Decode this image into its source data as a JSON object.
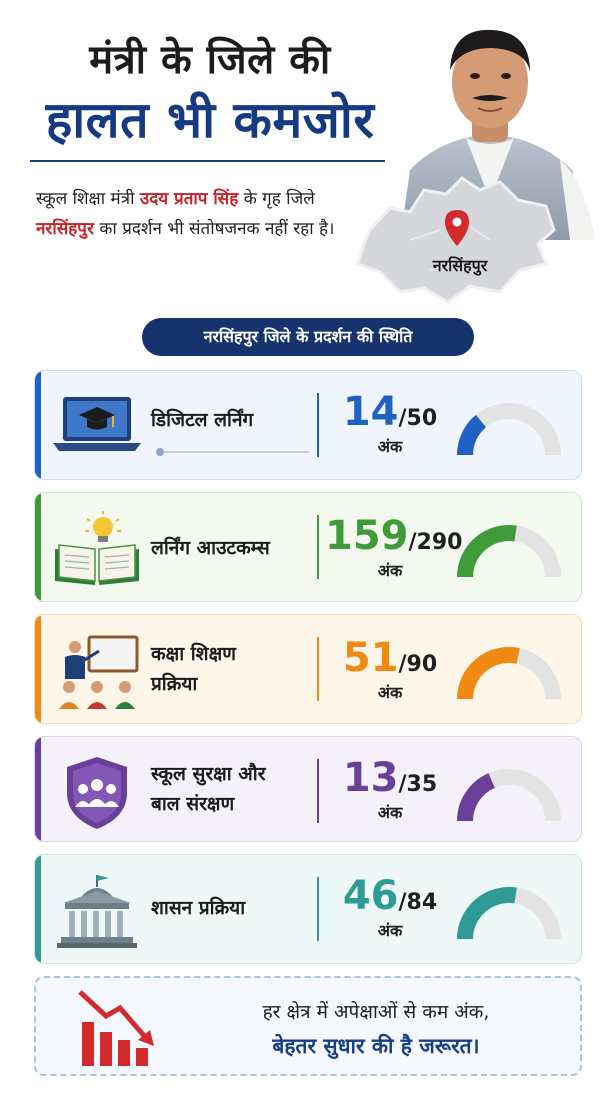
{
  "header": {
    "title_line1": "मंत्री के जिले की",
    "title_line2": "हालत भी कमजोर"
  },
  "intro": {
    "part1": "स्कूल शिक्षा मंत्री ",
    "minister": "उदय प्रताप सिंह",
    "part2": " के गृह जिले ",
    "district": "नरसिंहपुर",
    "part3": " का प्रदर्शन भी संतोषजनक नहीं रहा है।"
  },
  "map": {
    "label": "नरसिंहपुर"
  },
  "section_title": "नरसिंहपुर जिले के प्रदर्शन की स्थिति",
  "unit_label": "अंक",
  "cards": [
    {
      "label_line1": "डिजिटल लर्निंग",
      "label_line2": "",
      "score": "14",
      "max": "/50",
      "fraction": 0.28,
      "color": "#2062c4",
      "bg": "#f0f5fd",
      "border": "#cfdcf2",
      "icon": "laptop-graduation-cap-icon"
    },
    {
      "label_line1": "लर्निंग आउटकम्स",
      "label_line2": "",
      "score": "159",
      "max": "/290",
      "fraction": 0.548,
      "color": "#3f9a3a",
      "bg": "#f3f9ef",
      "border": "#d3e7cd",
      "icon": "book-lightbulb-icon"
    },
    {
      "label_line1": "कक्षा शिक्षण",
      "label_line2": "प्रक्रिया",
      "score": "51",
      "max": "/90",
      "fraction": 0.567,
      "color": "#f08a12",
      "bg": "#fff6ea",
      "border": "#f3dcbc",
      "icon": "teacher-classroom-icon"
    },
    {
      "label_line1": "स्कूल सुरक्षा और",
      "label_line2": "बाल संरक्षण",
      "score": "13",
      "max": "/35",
      "fraction": 0.371,
      "color": "#6a3f99",
      "bg": "#f5f1fa",
      "border": "#ddd2ea",
      "icon": "shield-group-icon"
    },
    {
      "label_line1": "शासन प्रक्रिया",
      "label_line2": "",
      "score": "46",
      "max": "/84",
      "fraction": 0.548,
      "color": "#2f9a96",
      "bg": "#eef8f7",
      "border": "#cde6e4",
      "icon": "government-building-icon"
    }
  ],
  "note": {
    "line1": "हर क्षेत्र में अपेक्षाओं से कम अंक,",
    "line2": "बेहतर सुधार की है जरूरत।",
    "icon": "declining-bar-chart-icon"
  }
}
